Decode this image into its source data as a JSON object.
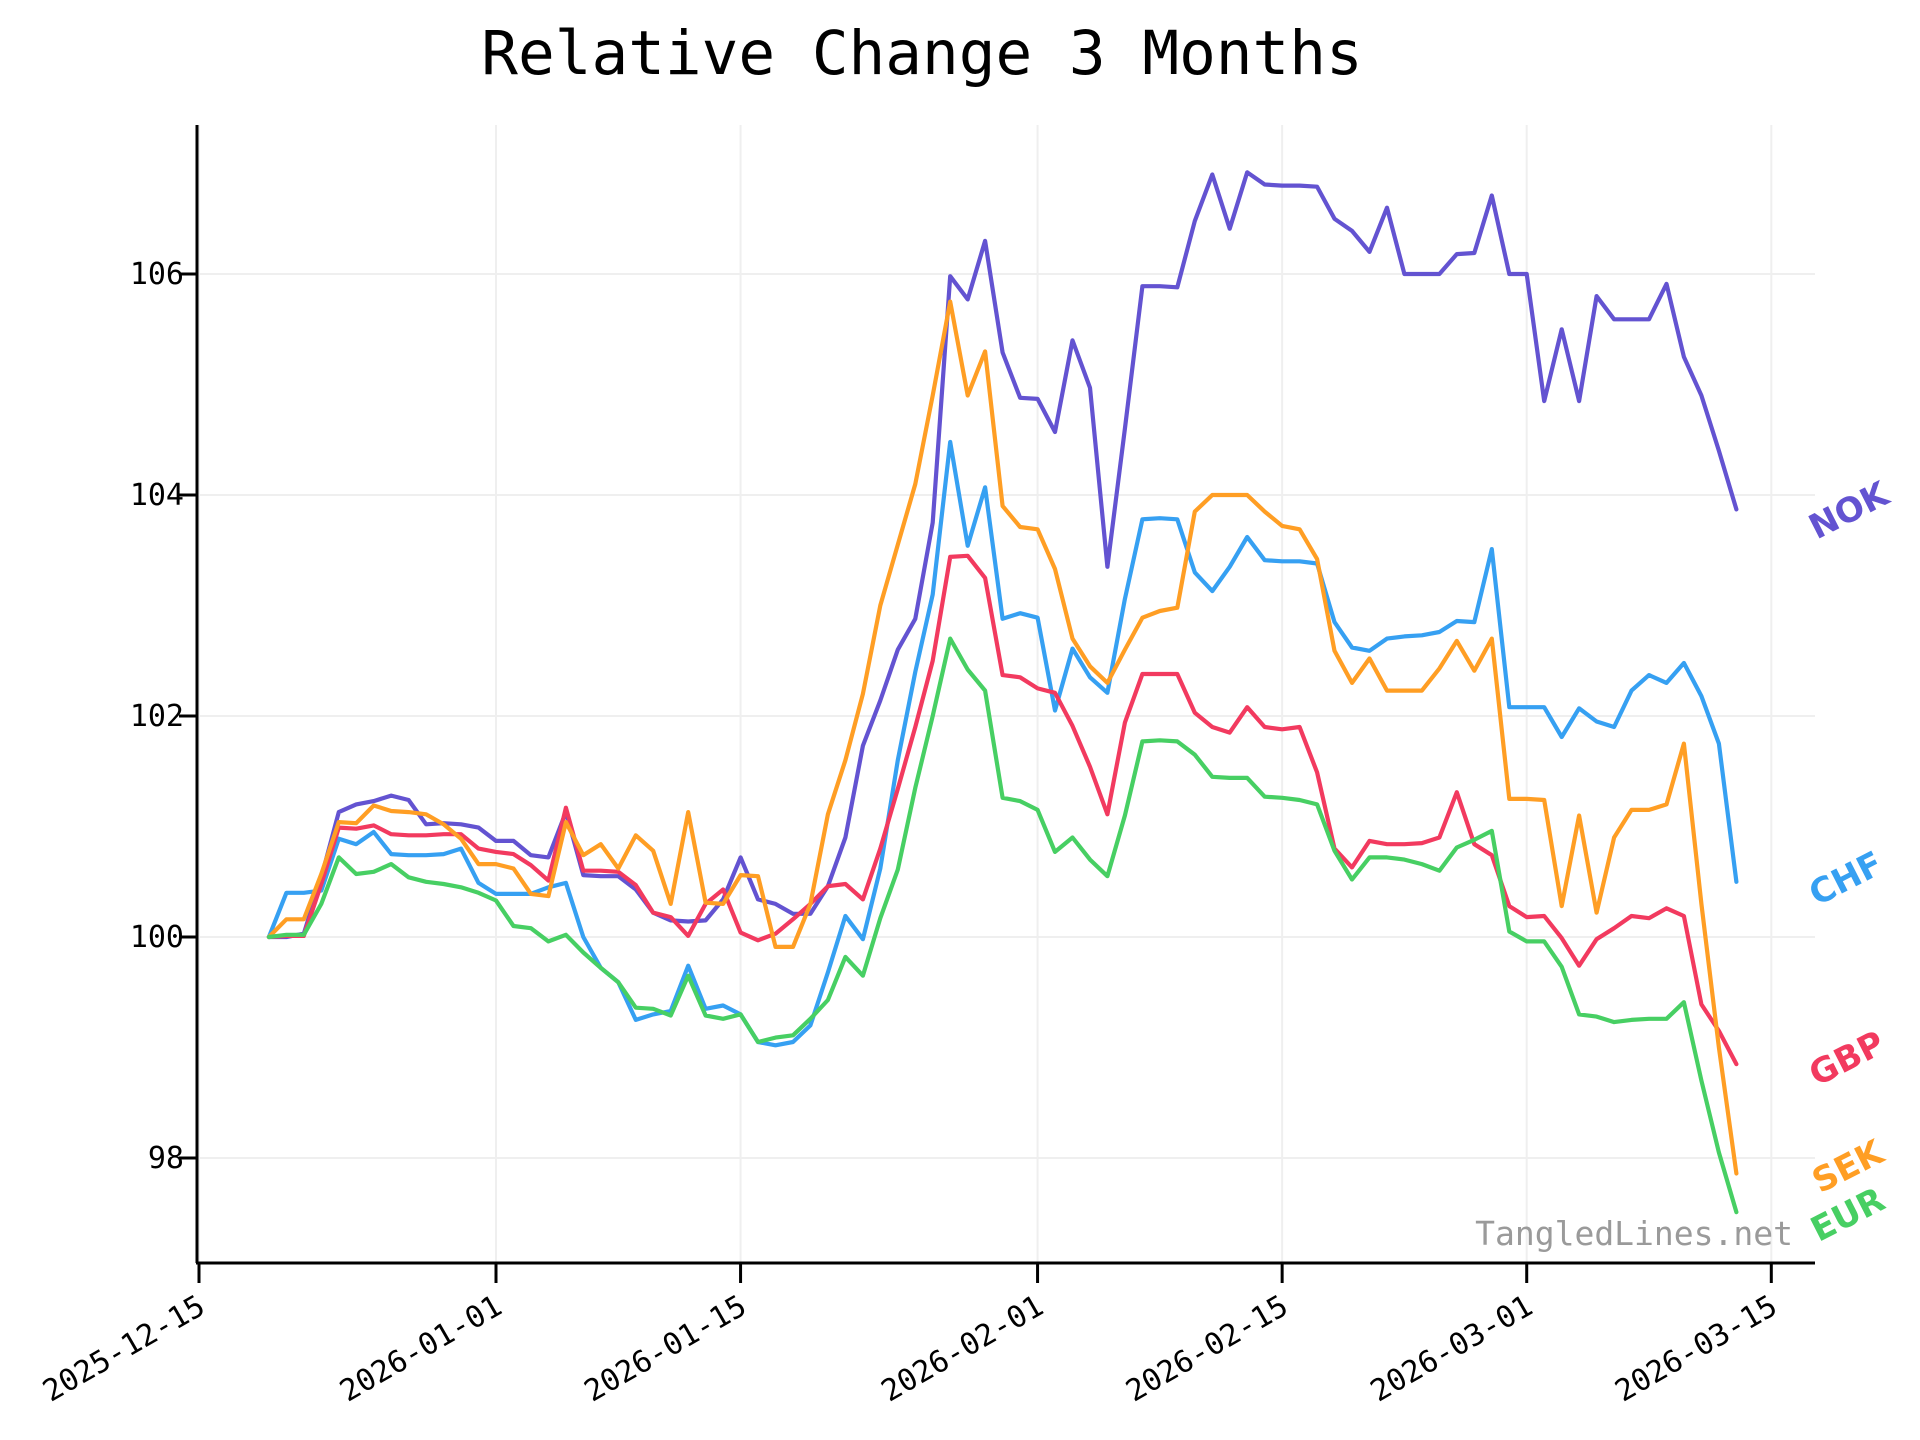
{
  "title": "Relative Change 3 Months",
  "watermark": "TangledLines.net",
  "chart_data": {
    "type": "line",
    "title": "Relative Change 3 Months",
    "xlabel": "",
    "ylabel": "",
    "grid": true,
    "legend_position": "line-end-right",
    "y_ticks": [
      98,
      100,
      102,
      104,
      106
    ],
    "ylim": [
      97.05,
      107.35
    ],
    "x_tick_labels": [
      "2025-12-15",
      "2026-01-01",
      "2026-01-15",
      "2026-02-01",
      "2026-02-15",
      "2026-03-01",
      "2026-03-15"
    ],
    "x_tick_day_offsets": [
      0,
      17,
      31,
      48,
      62,
      76,
      90
    ],
    "x_start_label": "2025-12-15",
    "series_start_label": "2025-12-19",
    "series_start_day_offset": 4,
    "colors": {
      "NOK": "#6353D1",
      "CHF": "#36A0F2",
      "GBP": "#F23A5F",
      "SEK": "#FF9E24",
      "EUR": "#47CF63",
      "grid": "#efefef",
      "axis": "#000000",
      "watermark": "#9a9a9a"
    },
    "series": [
      {
        "name": "NOK",
        "color": "#6353D1",
        "values": [
          100.0,
          100.0,
          100.03,
          100.54,
          101.13,
          101.2,
          101.23,
          101.28,
          101.24,
          101.02,
          101.03,
          101.02,
          100.99,
          100.87,
          100.87,
          100.74,
          100.72,
          101.13,
          100.56,
          100.55,
          100.55,
          100.43,
          100.22,
          100.15,
          100.14,
          100.15,
          100.34,
          100.72,
          100.34,
          100.3,
          100.21,
          100.21,
          100.46,
          100.9,
          101.73,
          102.14,
          102.6,
          102.88,
          103.75,
          105.98,
          105.77,
          106.3,
          105.29,
          104.88,
          104.87,
          104.57,
          105.4,
          104.97,
          103.35,
          104.6,
          105.89,
          105.89,
          105.88,
          106.48,
          106.9,
          106.41,
          106.92,
          106.81,
          106.8,
          106.8,
          106.79,
          106.5,
          106.39,
          106.2,
          106.6,
          106.0,
          106.0,
          106.0,
          106.18,
          106.19,
          106.71,
          106.0,
          106.0,
          104.85,
          105.5,
          104.85,
          105.8,
          105.59,
          105.59,
          105.59,
          105.91,
          105.25,
          104.9,
          104.4,
          103.87
        ]
      },
      {
        "name": "CHF",
        "color": "#36A0F2",
        "values": [
          100.0,
          100.4,
          100.4,
          100.42,
          100.89,
          100.84,
          100.95,
          100.75,
          100.74,
          100.74,
          100.75,
          100.8,
          100.49,
          100.39,
          100.39,
          100.39,
          100.45,
          100.49,
          100.0,
          99.72,
          99.59,
          99.25,
          99.3,
          99.33,
          99.74,
          99.35,
          99.38,
          99.3,
          99.05,
          99.02,
          99.05,
          99.2,
          99.68,
          100.19,
          99.98,
          100.62,
          101.6,
          102.4,
          103.1,
          104.48,
          103.54,
          104.07,
          102.88,
          102.93,
          102.89,
          102.05,
          102.61,
          102.35,
          102.21,
          103.06,
          103.78,
          103.79,
          103.78,
          103.3,
          103.13,
          103.35,
          103.62,
          103.41,
          103.4,
          103.4,
          103.38,
          102.85,
          102.62,
          102.59,
          102.7,
          102.72,
          102.73,
          102.76,
          102.86,
          102.85,
          103.51,
          102.08,
          102.08,
          102.08,
          101.81,
          102.07,
          101.95,
          101.9,
          102.23,
          102.37,
          102.3,
          102.48,
          102.18,
          101.75,
          100.5
        ]
      },
      {
        "name": "GBP",
        "color": "#F23A5F",
        "values": [
          100.0,
          100.01,
          100.01,
          100.48,
          100.99,
          100.98,
          101.01,
          100.93,
          100.92,
          100.92,
          100.93,
          100.93,
          100.8,
          100.77,
          100.75,
          100.65,
          100.51,
          101.17,
          100.6,
          100.6,
          100.59,
          100.47,
          100.22,
          100.18,
          100.01,
          100.3,
          100.43,
          100.04,
          99.97,
          100.03,
          100.16,
          100.3,
          100.46,
          100.48,
          100.34,
          100.8,
          101.34,
          101.9,
          102.5,
          103.44,
          103.45,
          103.25,
          102.37,
          102.35,
          102.25,
          102.21,
          101.91,
          101.54,
          101.11,
          101.94,
          102.38,
          102.38,
          102.38,
          102.03,
          101.9,
          101.85,
          102.08,
          101.9,
          101.88,
          101.9,
          101.49,
          100.8,
          100.63,
          100.87,
          100.84,
          100.84,
          100.85,
          100.9,
          101.31,
          100.84,
          100.74,
          100.28,
          100.18,
          100.19,
          99.99,
          99.74,
          99.98,
          100.08,
          100.19,
          100.17,
          100.26,
          100.19,
          99.39,
          99.15,
          98.85
        ]
      },
      {
        "name": "SEK",
        "color": "#FF9E24",
        "values": [
          100.0,
          100.16,
          100.16,
          100.57,
          101.04,
          101.03,
          101.19,
          101.14,
          101.13,
          101.11,
          101.02,
          100.89,
          100.66,
          100.66,
          100.62,
          100.39,
          100.37,
          101.04,
          100.74,
          100.84,
          100.62,
          100.92,
          100.78,
          100.3,
          101.13,
          100.31,
          100.3,
          100.56,
          100.55,
          99.91,
          99.91,
          100.3,
          101.11,
          101.6,
          102.2,
          103.0,
          103.55,
          104.1,
          104.9,
          105.75,
          104.9,
          105.3,
          103.9,
          103.71,
          103.69,
          103.33,
          102.7,
          102.45,
          102.3,
          102.6,
          102.89,
          102.95,
          102.98,
          103.85,
          104.0,
          104.0,
          104.0,
          103.85,
          103.72,
          103.69,
          103.42,
          102.59,
          102.3,
          102.52,
          102.23,
          102.23,
          102.23,
          102.43,
          102.68,
          102.41,
          102.7,
          101.25,
          101.25,
          101.24,
          100.28,
          101.1,
          100.22,
          100.9,
          101.15,
          101.15,
          101.2,
          101.75,
          100.3,
          99.0,
          97.86
        ]
      },
      {
        "name": "EUR",
        "color": "#47CF63",
        "values": [
          100.0,
          100.02,
          100.02,
          100.3,
          100.72,
          100.57,
          100.59,
          100.66,
          100.54,
          100.5,
          100.48,
          100.45,
          100.4,
          100.33,
          100.1,
          100.08,
          99.96,
          100.02,
          99.86,
          99.72,
          99.59,
          99.36,
          99.35,
          99.29,
          99.65,
          99.29,
          99.26,
          99.3,
          99.05,
          99.09,
          99.11,
          99.26,
          99.43,
          99.82,
          99.65,
          100.17,
          100.61,
          101.35,
          102.0,
          102.7,
          102.42,
          102.23,
          101.26,
          101.23,
          101.15,
          100.77,
          100.9,
          100.7,
          100.55,
          101.1,
          101.77,
          101.78,
          101.77,
          101.65,
          101.45,
          101.44,
          101.44,
          101.27,
          101.26,
          101.24,
          101.2,
          100.78,
          100.52,
          100.72,
          100.72,
          100.7,
          100.66,
          100.6,
          100.81,
          100.88,
          100.96,
          100.05,
          99.96,
          99.96,
          99.73,
          99.3,
          99.28,
          99.23,
          99.25,
          99.26,
          99.26,
          99.41,
          98.7,
          98.05,
          97.51
        ]
      }
    ]
  },
  "legend": {
    "nok": "NOK",
    "chf": "CHF",
    "gbp": "GBP",
    "sek": "SEK",
    "eur": "EUR"
  }
}
